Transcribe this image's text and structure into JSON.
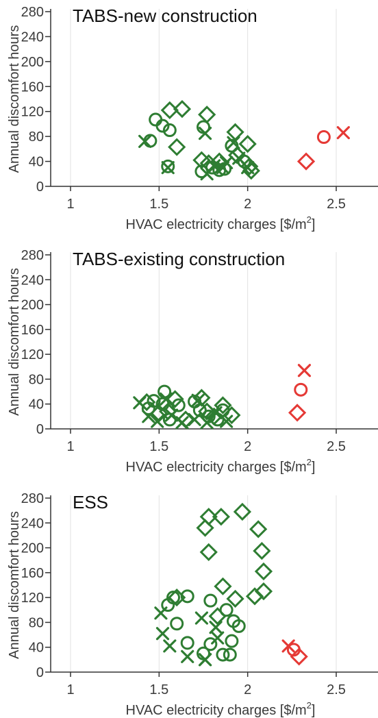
{
  "colors": {
    "green": "#2e7d32",
    "red": "#e53935",
    "grid": "#e2e2e2",
    "text": "#3a3a3a"
  },
  "legend_markers": [
    "circle",
    "diamond",
    "x"
  ],
  "chart_data": [
    {
      "type": "scatter",
      "title": "TABS-new construction",
      "xlabel": "HVAC electricity charges [$/m",
      "xlabel_sup": "2",
      "xlabel_end": "]",
      "ylabel": "Annual discomfort hours",
      "xlim": [
        1,
        2.7
      ],
      "ylim": [
        0,
        280
      ],
      "xticks": [
        1,
        1.5,
        2,
        2.5
      ],
      "xtick_labels": [
        "1",
        "1.5",
        "2",
        "2.5"
      ],
      "yticks": [
        0,
        40,
        80,
        120,
        160,
        200,
        240,
        280
      ],
      "ytick_labels": [
        "0",
        "40",
        "80",
        "120",
        "160",
        "200",
        "240",
        "280"
      ],
      "grid": true,
      "series": [
        {
          "color": "green",
          "marker": "circle",
          "points": [
            [
              1.48,
              107
            ],
            [
              1.45,
              73
            ],
            [
              1.52,
              97
            ],
            [
              1.56,
              90
            ],
            [
              1.55,
              32
            ],
            [
              1.75,
              95
            ],
            [
              1.74,
              24
            ],
            [
              1.8,
              30
            ],
            [
              1.84,
              26
            ],
            [
              1.87,
              28
            ],
            [
              1.91,
              65
            ],
            [
              1.98,
              40
            ]
          ]
        },
        {
          "color": "green",
          "marker": "diamond",
          "points": [
            [
              1.56,
              122
            ],
            [
              1.63,
              124
            ],
            [
              1.6,
              63
            ],
            [
              1.77,
              115
            ],
            [
              1.74,
              42
            ],
            [
              1.78,
              37
            ],
            [
              1.84,
              40
            ],
            [
              1.93,
              87
            ],
            [
              1.94,
              50
            ],
            [
              2.0,
              68
            ],
            [
              2.01,
              32
            ],
            [
              2.02,
              25
            ]
          ]
        },
        {
          "color": "green",
          "marker": "x",
          "points": [
            [
              1.42,
              72
            ],
            [
              1.55,
              30
            ],
            [
              1.77,
              20
            ],
            [
              1.76,
              85
            ],
            [
              1.81,
              33
            ],
            [
              1.86,
              30
            ],
            [
              1.88,
              38
            ],
            [
              1.92,
              70
            ],
            [
              1.95,
              45
            ],
            [
              2.0,
              30
            ]
          ]
        },
        {
          "color": "red",
          "marker": "circle",
          "points": [
            [
              2.43,
              79
            ]
          ]
        },
        {
          "color": "red",
          "marker": "diamond",
          "points": [
            [
              2.33,
              40
            ]
          ]
        },
        {
          "color": "red",
          "marker": "x",
          "points": [
            [
              2.54,
              86
            ]
          ]
        }
      ]
    },
    {
      "type": "scatter",
      "title": "TABS-existing construction",
      "xlabel": "HVAC electricity charges [$/m",
      "xlabel_sup": "2",
      "xlabel_end": "]",
      "ylabel": "Annual discomfort hours",
      "xlim": [
        1,
        2.7
      ],
      "ylim": [
        0,
        280
      ],
      "xticks": [
        1,
        1.5,
        2,
        2.5
      ],
      "xtick_labels": [
        "1",
        "1.5",
        "2",
        "2.5"
      ],
      "yticks": [
        0,
        40,
        80,
        120,
        160,
        200,
        240,
        280
      ],
      "ytick_labels": [
        "0",
        "40",
        "80",
        "120",
        "160",
        "200",
        "240",
        "280"
      ],
      "grid": true,
      "series": [
        {
          "color": "green",
          "marker": "circle",
          "points": [
            [
              1.44,
              33
            ],
            [
              1.47,
              45
            ],
            [
              1.53,
              60
            ],
            [
              1.52,
              40
            ],
            [
              1.56,
              15
            ],
            [
              1.61,
              38
            ],
            [
              1.7,
              44
            ],
            [
              1.73,
              30
            ],
            [
              1.78,
              20
            ],
            [
              1.83,
              15
            ],
            [
              1.86,
              30
            ]
          ]
        },
        {
          "color": "green",
          "marker": "diamond",
          "points": [
            [
              1.43,
              43
            ],
            [
              1.5,
              25
            ],
            [
              1.59,
              48
            ],
            [
              1.65,
              15
            ],
            [
              1.74,
              50
            ],
            [
              1.77,
              28
            ],
            [
              1.81,
              20
            ],
            [
              1.86,
              38
            ],
            [
              1.91,
              22
            ],
            [
              1.55,
              28
            ]
          ]
        },
        {
          "color": "green",
          "marker": "x",
          "points": [
            [
              1.39,
              42
            ],
            [
              1.44,
              20
            ],
            [
              1.49,
              12
            ],
            [
              1.54,
              48
            ],
            [
              1.57,
              22
            ],
            [
              1.63,
              10
            ],
            [
              1.7,
              15
            ],
            [
              1.72,
              46
            ],
            [
              1.77,
              10
            ],
            [
              1.82,
              26
            ],
            [
              1.88,
              12
            ]
          ]
        },
        {
          "color": "red",
          "marker": "circle",
          "points": [
            [
              2.3,
              63
            ]
          ]
        },
        {
          "color": "red",
          "marker": "diamond",
          "points": [
            [
              2.28,
              26
            ]
          ]
        },
        {
          "color": "red",
          "marker": "x",
          "points": [
            [
              2.32,
              94
            ]
          ]
        }
      ]
    },
    {
      "type": "scatter",
      "title": "ESS",
      "xlabel": "HVAC electricity charges [$/m",
      "xlabel_sup": "2",
      "xlabel_end": "]",
      "ylabel": "Annual discomfort hours",
      "xlim": [
        1,
        2.7
      ],
      "ylim": [
        0,
        280
      ],
      "xticks": [
        1,
        1.5,
        2,
        2.5
      ],
      "xtick_labels": [
        "1",
        "1.5",
        "2",
        "2.5"
      ],
      "yticks": [
        0,
        40,
        80,
        120,
        160,
        200,
        240,
        280
      ],
      "ytick_labels": [
        "0",
        "40",
        "80",
        "120",
        "160",
        "200",
        "240",
        "280"
      ],
      "grid": true,
      "series": [
        {
          "color": "green",
          "marker": "circle",
          "points": [
            [
              1.55,
              108
            ],
            [
              1.6,
              78
            ],
            [
              1.58,
              120
            ],
            [
              1.66,
              122
            ],
            [
              1.66,
              47
            ],
            [
              1.75,
              30
            ],
            [
              1.79,
              115
            ],
            [
              1.79,
              45
            ],
            [
              1.86,
              28
            ],
            [
              1.88,
              100
            ],
            [
              1.9,
              28
            ],
            [
              1.91,
              50
            ],
            [
              1.92,
              82
            ],
            [
              1.95,
              74
            ]
          ]
        },
        {
          "color": "green",
          "marker": "diamond",
          "points": [
            [
              1.6,
              120
            ],
            [
              1.76,
              232
            ],
            [
              1.78,
              250
            ],
            [
              1.85,
              250
            ],
            [
              1.78,
              193
            ],
            [
              1.86,
              138
            ],
            [
              1.83,
              90
            ],
            [
              1.93,
              118
            ],
            [
              1.97,
              258
            ],
            [
              2.04,
              122
            ],
            [
              2.06,
              230
            ],
            [
              2.08,
              195
            ],
            [
              2.09,
              162
            ],
            [
              2.09,
              130
            ]
          ]
        },
        {
          "color": "green",
          "marker": "x",
          "points": [
            [
              1.51,
              95
            ],
            [
              1.52,
              62
            ],
            [
              1.56,
              42
            ],
            [
              1.66,
              25
            ],
            [
              1.74,
              87
            ],
            [
              1.76,
              20
            ],
            [
              1.76,
              20
            ],
            [
              1.82,
              72
            ],
            [
              1.83,
              55
            ]
          ]
        },
        {
          "color": "red",
          "marker": "circle",
          "points": [
            [
              2.26,
              36
            ]
          ]
        },
        {
          "color": "red",
          "marker": "diamond",
          "points": [
            [
              2.29,
              25
            ]
          ]
        },
        {
          "color": "red",
          "marker": "x",
          "points": [
            [
              2.23,
              42
            ]
          ]
        }
      ]
    }
  ]
}
